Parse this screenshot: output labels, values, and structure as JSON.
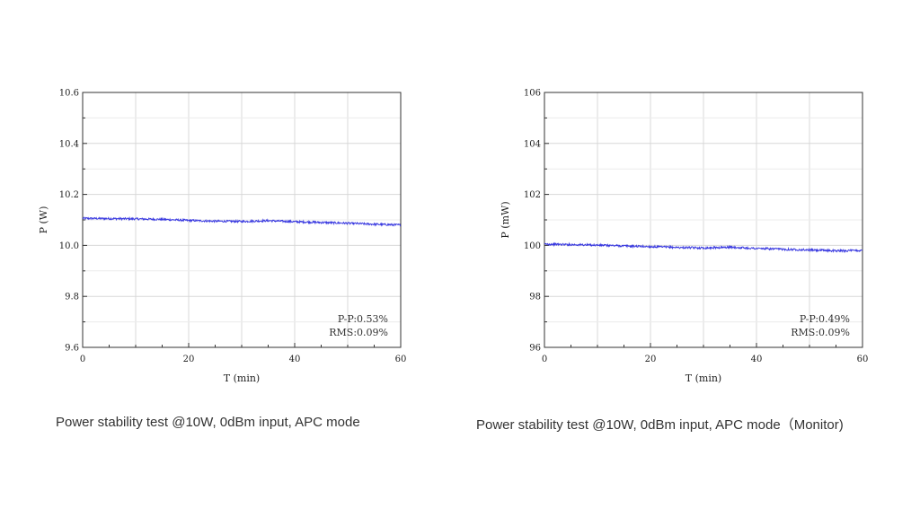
{
  "captions": [
    "Power stability test @10W, 0dBm input, APC mode",
    "Power stability test @10W, 0dBm input, APC mode（Monitor)"
  ],
  "chart_data": [
    {
      "type": "line",
      "xlabel": "T (min)",
      "ylabel": "P (W)",
      "xlim": [
        0,
        60
      ],
      "ylim": [
        9.6,
        10.6
      ],
      "xticks": [
        0,
        20,
        40,
        60
      ],
      "yticks": [
        "9.6",
        "9.8",
        "10.0",
        "10.2",
        "10.4",
        "10.6"
      ],
      "grid": true,
      "series_color": "#3a3ae0",
      "annotations": [
        "P-P:0.53%",
        "RMS:0.09%"
      ],
      "x": [
        0,
        5,
        10,
        15,
        20,
        25,
        30,
        35,
        40,
        45,
        50,
        55,
        60
      ],
      "values": [
        10.106,
        10.105,
        10.104,
        10.102,
        10.098,
        10.095,
        10.094,
        10.097,
        10.093,
        10.09,
        10.087,
        10.083,
        10.08
      ]
    },
    {
      "type": "line",
      "xlabel": "T (min)",
      "ylabel": "P (mW)",
      "xlim": [
        0,
        60
      ],
      "ylim": [
        96,
        106
      ],
      "xticks": [
        0,
        20,
        40,
        60
      ],
      "yticks": [
        "96",
        "98",
        "100",
        "102",
        "104",
        "106"
      ],
      "grid": true,
      "series_color": "#3a3ae0",
      "annotations": [
        "P-P:0.49%",
        "RMS:0.09%"
      ],
      "x": [
        0,
        5,
        10,
        15,
        20,
        25,
        30,
        35,
        40,
        45,
        50,
        55,
        60
      ],
      "values": [
        100.05,
        100.03,
        100.01,
        99.98,
        99.95,
        99.92,
        99.9,
        99.93,
        99.88,
        99.85,
        99.82,
        99.79,
        99.8
      ]
    }
  ]
}
